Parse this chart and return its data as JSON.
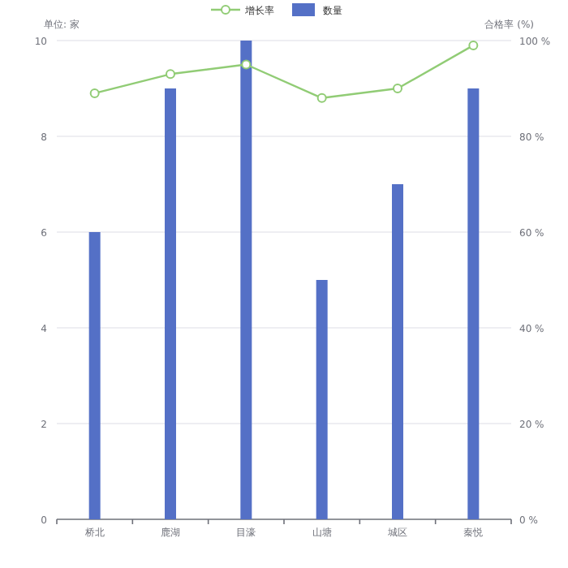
{
  "chart_data": {
    "type": "bar",
    "ylabel": "单位: 家",
    "y2label": "合格率 (%)",
    "categories": [
      "桥北",
      "鹿湖",
      "目濠",
      "山塘",
      "城区",
      "秦悦"
    ],
    "series": [
      {
        "name": "增长率",
        "type": "line",
        "axis": "y2",
        "color": "#91cc75",
        "marker": "circle",
        "values": [
          89,
          93,
          95,
          88,
          90,
          99
        ]
      },
      {
        "name": "数量",
        "color": "#5470c6",
        "values": [
          6,
          9,
          10,
          5,
          7,
          9
        ]
      }
    ],
    "ylim": [
      0,
      10
    ],
    "yticks": [
      0,
      2,
      4,
      6,
      8,
      10
    ],
    "y2lim": [
      0,
      100
    ],
    "y2ticks": [
      {
        "value": 0,
        "label": "0 %"
      },
      {
        "value": 20,
        "label": "20 %"
      },
      {
        "value": 40,
        "label": "40 %"
      },
      {
        "value": 60,
        "label": "60 %"
      },
      {
        "value": 80,
        "label": "80 %"
      },
      {
        "value": 100,
        "label": "100 %"
      }
    ],
    "grid": "y",
    "legend": "top"
  }
}
